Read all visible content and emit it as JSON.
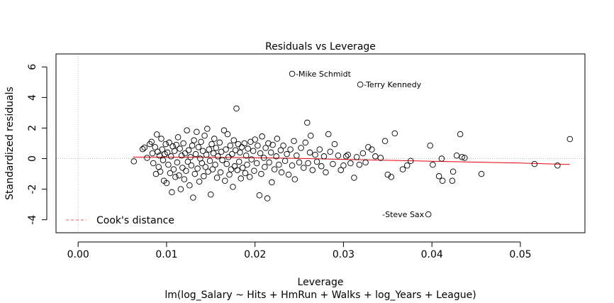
{
  "chart_data": {
    "type": "scatter",
    "title": "Residuals vs Leverage",
    "xlabel": "Leverage",
    "subtitle": "lm(log_Salary ~ Hits + HmRun + Walks + log_Years + League)",
    "ylabel": "Standardized residuals",
    "xlim": [
      -0.0025,
      0.0573
    ],
    "ylim": [
      -4.85,
      6.85
    ],
    "x_ticks": [
      0.0,
      0.01,
      0.02,
      0.03,
      0.04,
      0.05
    ],
    "x_tick_labels": [
      "0.00",
      "0.01",
      "0.02",
      "0.03",
      "0.04",
      "0.05"
    ],
    "y_ticks": [
      -4,
      -2,
      0,
      2,
      4,
      6
    ],
    "y_tick_labels": [
      "-4",
      "-2",
      "0",
      "2",
      "4",
      "6"
    ],
    "legend": {
      "label": "Cook's distance",
      "position": "bottom-left",
      "color": "#ff5555"
    },
    "smoother": {
      "color": "#e8000b",
      "x": [
        0.0062,
        0.01,
        0.015,
        0.02,
        0.025,
        0.03,
        0.035,
        0.04,
        0.045,
        0.05,
        0.0556
      ],
      "y": [
        0.1,
        0.1,
        0.09,
        0.06,
        0.01,
        -0.05,
        -0.11,
        -0.17,
        -0.23,
        -0.29,
        -0.38
      ]
    },
    "labeled_points": [
      {
        "name": "-Mike Schmidt",
        "x": 0.0242,
        "y": 5.55
      },
      {
        "name": "-Terry Kennedy",
        "x": 0.0319,
        "y": 4.85
      },
      {
        "name": "-Steve Sax",
        "x": 0.0396,
        "y": -3.65
      }
    ],
    "points": [
      [
        0.0063,
        -0.18
      ],
      [
        0.0073,
        0.62
      ],
      [
        0.0075,
        0.72
      ],
      [
        0.0078,
        0.05
      ],
      [
        0.0081,
        0.95
      ],
      [
        0.0083,
        1.1
      ],
      [
        0.0084,
        0.35
      ],
      [
        0.0085,
        -0.3
      ],
      [
        0.0087,
        0.75
      ],
      [
        0.0088,
        -1.0
      ],
      [
        0.0089,
        1.58
      ],
      [
        0.009,
        0.45
      ],
      [
        0.0091,
        -0.55
      ],
      [
        0.0092,
        0.2
      ],
      [
        0.0093,
        -0.85
      ],
      [
        0.0094,
        1.3
      ],
      [
        0.0095,
        0.6
      ],
      [
        0.0096,
        -0.1
      ],
      [
        0.0097,
        -1.45
      ],
      [
        0.0098,
        0.3
      ],
      [
        0.0099,
        0.95
      ],
      [
        0.01,
        -1.6
      ],
      [
        0.0101,
        0.4
      ],
      [
        0.0102,
        -0.4
      ],
      [
        0.0103,
        1.05
      ],
      [
        0.0104,
        -0.95
      ],
      [
        0.0105,
        0.15
      ],
      [
        0.0106,
        -2.2
      ],
      [
        0.0107,
        0.8
      ],
      [
        0.0108,
        -0.7
      ],
      [
        0.0109,
        0.5
      ],
      [
        0.011,
        -1.2
      ],
      [
        0.0111,
        0.9
      ],
      [
        0.0112,
        -0.25
      ],
      [
        0.0113,
        1.4
      ],
      [
        0.0114,
        -1.1
      ],
      [
        0.0115,
        0.65
      ],
      [
        0.0116,
        -2.0
      ],
      [
        0.0117,
        0.2
      ],
      [
        0.0118,
        -0.6
      ],
      [
        0.0119,
        1.0
      ],
      [
        0.012,
        -1.35
      ],
      [
        0.0121,
        0.35
      ],
      [
        0.0122,
        -0.8
      ],
      [
        0.0123,
        1.85
      ],
      [
        0.0124,
        -0.2
      ],
      [
        0.0125,
        0.55
      ],
      [
        0.0126,
        -1.75
      ],
      [
        0.0127,
        0.1
      ],
      [
        0.0128,
        -0.45
      ],
      [
        0.0129,
        0.85
      ],
      [
        0.013,
        -2.55
      ],
      [
        0.0131,
        1.2
      ],
      [
        0.0132,
        -1.0
      ],
      [
        0.0133,
        0.3
      ],
      [
        0.0134,
        1.75
      ],
      [
        0.0135,
        -0.65
      ],
      [
        0.0136,
        0.75
      ],
      [
        0.0137,
        -1.5
      ],
      [
        0.0138,
        0.0
      ],
      [
        0.0139,
        1.1
      ],
      [
        0.014,
        -0.3
      ],
      [
        0.0141,
        0.5
      ],
      [
        0.0142,
        -1.15
      ],
      [
        0.0143,
        1.5
      ],
      [
        0.0144,
        -0.55
      ],
      [
        0.0145,
        0.25
      ],
      [
        0.0146,
        1.95
      ],
      [
        0.0147,
        -0.85
      ],
      [
        0.0148,
        0.6
      ],
      [
        0.0149,
        -0.15
      ],
      [
        0.015,
        -2.35
      ],
      [
        0.0151,
        0.95
      ],
      [
        0.0152,
        -0.7
      ],
      [
        0.0153,
        0.35
      ],
      [
        0.0154,
        1.3
      ],
      [
        0.0155,
        -0.4
      ],
      [
        0.0156,
        0.7
      ],
      [
        0.0157,
        -1.25
      ],
      [
        0.0158,
        0.15
      ],
      [
        0.016,
        1.05
      ],
      [
        0.0161,
        -0.9
      ],
      [
        0.0162,
        0.45
      ],
      [
        0.0163,
        -0.1
      ],
      [
        0.0165,
        1.85
      ],
      [
        0.0166,
        -1.45
      ],
      [
        0.0167,
        0.6
      ],
      [
        0.0168,
        -0.35
      ],
      [
        0.0169,
        1.6
      ],
      [
        0.017,
        0.1
      ],
      [
        0.0171,
        -1.05
      ],
      [
        0.0172,
        0.85
      ],
      [
        0.0173,
        -0.7
      ],
      [
        0.0174,
        0.3
      ],
      [
        0.0175,
        -1.85
      ],
      [
        0.0176,
        1.2
      ],
      [
        0.0177,
        -0.5
      ],
      [
        0.0178,
        0.55
      ],
      [
        0.0179,
        3.28
      ],
      [
        0.018,
        -0.75
      ],
      [
        0.0181,
        0.95
      ],
      [
        0.0182,
        -0.2
      ],
      [
        0.0183,
        0.4
      ],
      [
        0.0184,
        -1.3
      ],
      [
        0.0185,
        0.75
      ],
      [
        0.0186,
        -0.6
      ],
      [
        0.0188,
        1.0
      ],
      [
        0.0189,
        -0.95
      ],
      [
        0.019,
        0.2
      ],
      [
        0.0191,
        -0.4
      ],
      [
        0.0192,
        0.65
      ],
      [
        0.0194,
        -1.2
      ],
      [
        0.0195,
        1.1
      ],
      [
        0.0196,
        -0.05
      ],
      [
        0.0198,
        0.5
      ],
      [
        0.0199,
        -0.8
      ],
      [
        0.02,
        1.25
      ],
      [
        0.0202,
        -0.3
      ],
      [
        0.0203,
        0.85
      ],
      [
        0.0205,
        -2.4
      ],
      [
        0.0206,
        0.35
      ],
      [
        0.0207,
        -1.0
      ],
      [
        0.0208,
        1.45
      ],
      [
        0.021,
        0.05
      ],
      [
        0.0211,
        -0.55
      ],
      [
        0.0212,
        0.7
      ],
      [
        0.0214,
        -2.6
      ],
      [
        0.0215,
        1.0
      ],
      [
        0.0216,
        -0.25
      ],
      [
        0.0218,
        0.4
      ],
      [
        0.0219,
        -1.55
      ],
      [
        0.022,
        0.9
      ],
      [
        0.0222,
        -0.7
      ],
      [
        0.0224,
        0.15
      ],
      [
        0.0225,
        1.3
      ],
      [
        0.0227,
        -0.4
      ],
      [
        0.0229,
        0.55
      ],
      [
        0.023,
        -0.9
      ],
      [
        0.0232,
        0.85
      ],
      [
        0.0234,
        -0.15
      ],
      [
        0.0236,
        0.3
      ],
      [
        0.0238,
        -1.05
      ],
      [
        0.024,
        0.6
      ],
      [
        0.0242,
        -0.45
      ],
      [
        0.0244,
        1.15
      ],
      [
        0.0245,
        -1.35
      ],
      [
        0.0247,
        0.2
      ],
      [
        0.025,
        -0.25
      ],
      [
        0.0252,
        0.7
      ],
      [
        0.0255,
        -0.6
      ],
      [
        0.0257,
        1.05
      ],
      [
        0.0259,
        2.35
      ],
      [
        0.026,
        -0.3
      ],
      [
        0.0262,
        0.4
      ],
      [
        0.0263,
        1.5
      ],
      [
        0.0265,
        -0.75
      ],
      [
        0.0268,
        0.25
      ],
      [
        0.027,
        -0.2
      ],
      [
        0.0273,
        0.6
      ],
      [
        0.0275,
        -0.5
      ],
      [
        0.0278,
        0.15
      ],
      [
        0.028,
        -0.9
      ],
      [
        0.0283,
        1.6
      ],
      [
        0.0285,
        0.45
      ],
      [
        0.0288,
        -0.35
      ],
      [
        0.029,
        0.95
      ],
      [
        0.0294,
        0.2
      ],
      [
        0.0297,
        -0.75
      ],
      [
        0.03,
        -0.45
      ],
      [
        0.0303,
        0.15
      ],
      [
        0.0305,
        0.25
      ],
      [
        0.0308,
        -0.3
      ],
      [
        0.0312,
        -1.25
      ],
      [
        0.0315,
        0.1
      ],
      [
        0.0318,
        -0.4
      ],
      [
        0.0322,
        0.35
      ],
      [
        0.0325,
        -0.25
      ],
      [
        0.0328,
        0.75
      ],
      [
        0.0332,
        0.6
      ],
      [
        0.0336,
        0.15
      ],
      [
        0.0342,
        0.05
      ],
      [
        0.0347,
        1.15
      ],
      [
        0.035,
        -1.05
      ],
      [
        0.0354,
        -1.2
      ],
      [
        0.0358,
        1.65
      ],
      [
        0.0367,
        -0.7
      ],
      [
        0.0372,
        -0.45
      ],
      [
        0.0376,
        -0.15
      ],
      [
        0.0398,
        0.85
      ],
      [
        0.0401,
        -0.4
      ],
      [
        0.0408,
        -1.15
      ],
      [
        0.0411,
        0.0
      ],
      [
        0.0412,
        -1.45
      ],
      [
        0.0423,
        -1.45
      ],
      [
        0.0424,
        -0.85
      ],
      [
        0.0428,
        0.2
      ],
      [
        0.0432,
        1.6
      ],
      [
        0.0434,
        0.1
      ],
      [
        0.0437,
        0.05
      ],
      [
        0.0456,
        -1.0
      ],
      [
        0.0516,
        -0.35
      ],
      [
        0.0542,
        -0.45
      ],
      [
        0.0556,
        1.28
      ]
    ]
  }
}
